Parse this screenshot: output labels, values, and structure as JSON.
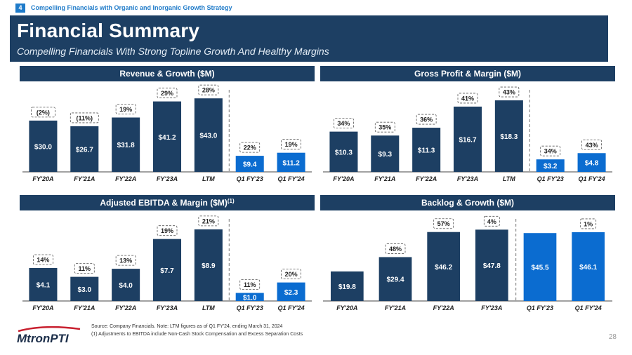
{
  "breadcrumb": {
    "number": "4",
    "text": "Compelling Financials with Organic and Inorganic Growth Strategy"
  },
  "header": {
    "title": "Financial Summary",
    "subtitle": "Compelling Financials With Strong Topline Growth And Healthy Margins"
  },
  "colors": {
    "dark": "#1d3f63",
    "light": "#0b6cd0",
    "accent": "#1f7bc9"
  },
  "chart_data": [
    {
      "type": "bar",
      "title": "Revenue & Growth ($M)",
      "categories": [
        "FY'20A",
        "FY'21A",
        "FY'22A",
        "FY'23A",
        "LTM",
        "Q1 FY'23",
        "Q1 FY'24"
      ],
      "values": [
        30.0,
        26.7,
        31.8,
        41.2,
        43.0,
        9.4,
        11.2
      ],
      "value_labels": [
        "$30.0",
        "$26.7",
        "$31.8",
        "$41.2",
        "$43.0",
        "$9.4",
        "$11.2"
      ],
      "annotations": [
        "(2%)",
        "(11%)",
        "19%",
        "29%",
        "28%",
        "22%",
        "19%"
      ],
      "bar_styles": [
        "dark",
        "dark",
        "dark",
        "dark",
        "dark",
        "light",
        "light"
      ],
      "divider_after": 4,
      "ylim": [
        0,
        48
      ]
    },
    {
      "type": "bar",
      "title": "Gross Profit & Margin ($M)",
      "categories": [
        "FY'20A",
        "FY'21A",
        "FY'22A",
        "FY'23A",
        "LTM",
        "Q1 FY'23",
        "Q1 FY'24"
      ],
      "values": [
        10.3,
        9.3,
        11.3,
        16.7,
        18.3,
        3.2,
        4.8
      ],
      "value_labels": [
        "$10.3",
        "$9.3",
        "$11.3",
        "$16.7",
        "$18.3",
        "$3.2",
        "$4.8"
      ],
      "annotations": [
        "34%",
        "35%",
        "36%",
        "41%",
        "43%",
        "34%",
        "43%"
      ],
      "bar_styles": [
        "dark",
        "dark",
        "dark",
        "dark",
        "dark",
        "light",
        "light"
      ],
      "divider_after": 4,
      "ylim": [
        0,
        21
      ]
    },
    {
      "type": "bar",
      "title": "Adjusted EBITDA & Margin ($M)",
      "title_sup": "(1)",
      "categories": [
        "FY'20A",
        "FY'21A",
        "FY'22A",
        "FY'23A",
        "LTM",
        "Q1 FY'23",
        "Q1 FY'24"
      ],
      "values": [
        4.1,
        3.0,
        4.0,
        7.7,
        8.9,
        1.0,
        2.3
      ],
      "value_labels": [
        "$4.1",
        "$3.0",
        "$4.0",
        "$7.7",
        "$8.9",
        "$1.0",
        "$2.3"
      ],
      "annotations": [
        "14%",
        "11%",
        "13%",
        "19%",
        "21%",
        "11%",
        "20%"
      ],
      "bar_styles": [
        "dark",
        "dark",
        "dark",
        "dark",
        "dark",
        "light",
        "light"
      ],
      "divider_after": 4,
      "ylim": [
        0,
        10.2
      ]
    },
    {
      "type": "bar",
      "title": "Backlog & Growth ($M)",
      "categories": [
        "FY'20A",
        "FY'21A",
        "FY'22A",
        "FY'23A",
        "Q1 FY'23",
        "Q1 FY'24"
      ],
      "values": [
        19.8,
        29.4,
        46.2,
        47.8,
        45.5,
        46.1
      ],
      "value_labels": [
        "$19.8",
        "$29.4",
        "$46.2",
        "$47.8",
        "$45.5",
        "$46.1"
      ],
      "annotations": [
        "",
        "48%",
        "57%",
        "4%",
        "",
        "1%"
      ],
      "bar_styles": [
        "dark",
        "dark",
        "dark",
        "dark",
        "light",
        "light"
      ],
      "divider_after": 3,
      "ylim": [
        0,
        55
      ]
    }
  ],
  "footer": {
    "source": "Source: Company Financials. Note: LTM figures as of Q1 FY'24, ending March 31, 2024",
    "note": "(1) Adjustments to EBITDA include Non-Cash Stock Compensation and Excess Separation Costs"
  },
  "logo": {
    "text": "MtronPTI"
  },
  "page_number": "28"
}
